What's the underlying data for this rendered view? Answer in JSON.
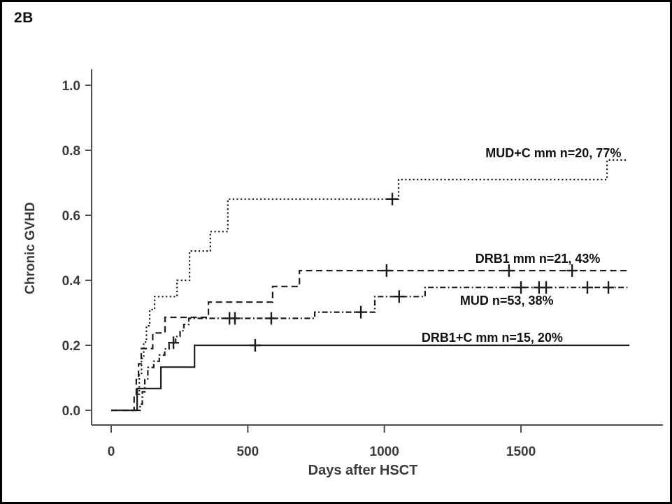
{
  "figure": {
    "panel_label": "2B",
    "background_color": "#ffffff",
    "border_color": "#000000"
  },
  "chart_data": {
    "type": "line",
    "subtype": "kaplan-meier-step-cumulative-incidence",
    "title": "",
    "xlabel": "Days after HSCT",
    "ylabel": "Chronic GVHD",
    "xlim": [
      0,
      2019
    ],
    "ylim": [
      0,
      1.05
    ],
    "grid": false,
    "legend_position": "inline-curve-annotations",
    "x_ticks": [
      {
        "value": 0,
        "label": "0"
      },
      {
        "value": 500,
        "label": "500"
      },
      {
        "value": 1000,
        "label": "1000"
      },
      {
        "value": 1500,
        "label": "1500"
      }
    ],
    "y_ticks": [
      {
        "value": 0.0,
        "label": "0.0"
      },
      {
        "value": 0.2,
        "label": "0.2"
      },
      {
        "value": 0.4,
        "label": "0.4"
      },
      {
        "value": 0.6,
        "label": "0.6"
      },
      {
        "value": 0.8,
        "label": "0.8"
      },
      {
        "value": 1.0,
        "label": "1.0"
      }
    ],
    "colors": {
      "curve": "#1c1c1c",
      "axis": "#4d4d4d",
      "tick_text": "#3b3b3b",
      "annotation_text": "#111111"
    },
    "series": [
      {
        "name": "MUD+C mm",
        "label": "MUD+C mm n=20, 77%",
        "n": 20,
        "final_percent": 77,
        "line_style": "dotted",
        "end_day": 1890,
        "points": [
          [
            0,
            0
          ],
          [
            87,
            0
          ],
          [
            95,
            0.05
          ],
          [
            103,
            0.11
          ],
          [
            111,
            0.16
          ],
          [
            119,
            0.21
          ],
          [
            129,
            0.26
          ],
          [
            141,
            0.31
          ],
          [
            159,
            0.35
          ],
          [
            241,
            0.4
          ],
          [
            287,
            0.49
          ],
          [
            363,
            0.55
          ],
          [
            427,
            0.65
          ],
          [
            1052,
            0.71
          ],
          [
            1815,
            0.77
          ]
        ],
        "censor_marks": [
          [
            1029,
            0.65
          ]
        ],
        "label_pos": {
          "day": 1370,
          "value": 0.778
        }
      },
      {
        "name": "DRB1 mm",
        "label": "DRB1 mm n=21, 43%",
        "n": 21,
        "final_percent": 43,
        "line_style": "dashed",
        "end_day": 1890,
        "points": [
          [
            0,
            0
          ],
          [
            78,
            0
          ],
          [
            84,
            0.048
          ],
          [
            92,
            0.095
          ],
          [
            100,
            0.143
          ],
          [
            110,
            0.19
          ],
          [
            152,
            0.238
          ],
          [
            197,
            0.286
          ],
          [
            356,
            0.333
          ],
          [
            591,
            0.381
          ],
          [
            689,
            0.43
          ]
        ],
        "censor_marks": [
          [
            1008,
            0.43
          ],
          [
            1456,
            0.43
          ],
          [
            1687,
            0.43
          ]
        ],
        "label_pos": {
          "day": 1333,
          "value": 0.454
        }
      },
      {
        "name": "MUD",
        "label": "MUD n=53, 38%",
        "n": 53,
        "final_percent": 38,
        "line_style": "dashdot",
        "end_day": 1890,
        "points": [
          [
            0,
            0
          ],
          [
            100,
            0
          ],
          [
            106,
            0.019
          ],
          [
            114,
            0.057
          ],
          [
            123,
            0.094
          ],
          [
            134,
            0.132
          ],
          [
            156,
            0.151
          ],
          [
            176,
            0.17
          ],
          [
            196,
            0.189
          ],
          [
            212,
            0.208
          ],
          [
            236,
            0.227
          ],
          [
            252,
            0.245
          ],
          [
            266,
            0.264
          ],
          [
            284,
            0.283
          ],
          [
            745,
            0.302
          ],
          [
            965,
            0.35
          ],
          [
            1149,
            0.378
          ]
        ],
        "censor_marks": [
          [
            228,
            0.208
          ],
          [
            433,
            0.283
          ],
          [
            453,
            0.283
          ],
          [
            586,
            0.283
          ],
          [
            914,
            0.302
          ],
          [
            1054,
            0.35
          ],
          [
            1500,
            0.378
          ],
          [
            1566,
            0.378
          ],
          [
            1592,
            0.378
          ],
          [
            1743,
            0.378
          ],
          [
            1820,
            0.378
          ]
        ],
        "label_pos": {
          "day": 1277,
          "value": 0.325
        }
      },
      {
        "name": "DRB1+C mm",
        "label": "DRB1+C mm n=15, 20%",
        "n": 15,
        "final_percent": 20,
        "line_style": "solid",
        "end_day": 1897,
        "points": [
          [
            0,
            0
          ],
          [
            90,
            0
          ],
          [
            95,
            0.067
          ],
          [
            182,
            0.133
          ],
          [
            305,
            0.2
          ]
        ],
        "censor_marks": [
          [
            527,
            0.2
          ]
        ],
        "label_pos": {
          "day": 1136,
          "value": 0.211
        }
      }
    ]
  }
}
